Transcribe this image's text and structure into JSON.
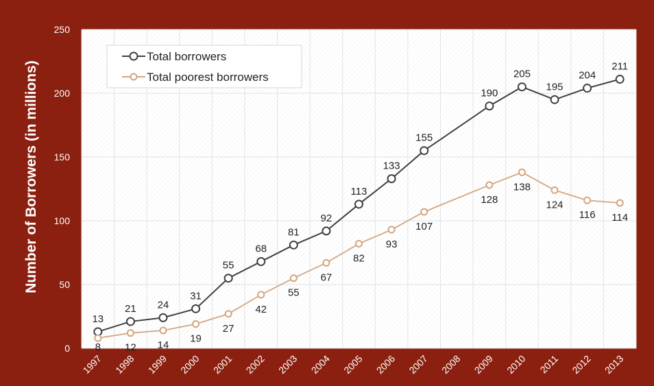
{
  "chart_data": {
    "type": "line",
    "title": "",
    "xlabel": "",
    "ylabel": "Number of Borrowers (in millions)",
    "ylim": [
      0,
      250
    ],
    "yticks": [
      0,
      50,
      100,
      150,
      200,
      250
    ],
    "x": [
      "1997",
      "1998",
      "1999",
      "2000",
      "2001",
      "2002",
      "2003",
      "2004",
      "2005",
      "2006",
      "2007",
      "2008",
      "2009",
      "2010",
      "2011",
      "2012",
      "2013"
    ],
    "grid": true,
    "legend_position": "top-left",
    "series": [
      {
        "name": "Total borrowers",
        "color": "#3f3f3f",
        "values": [
          13,
          21,
          24,
          31,
          55,
          68,
          81,
          92,
          113,
          133,
          155,
          null,
          190,
          205,
          195,
          204,
          211
        ]
      },
      {
        "name": "Total poorest borrowers",
        "color": "#d4a57e",
        "values": [
          8,
          12,
          14,
          19,
          27,
          42,
          55,
          67,
          82,
          93,
          107,
          null,
          128,
          138,
          124,
          116,
          114
        ]
      }
    ],
    "frame_color": "#8b2010",
    "plot_background": "#ffffff"
  }
}
